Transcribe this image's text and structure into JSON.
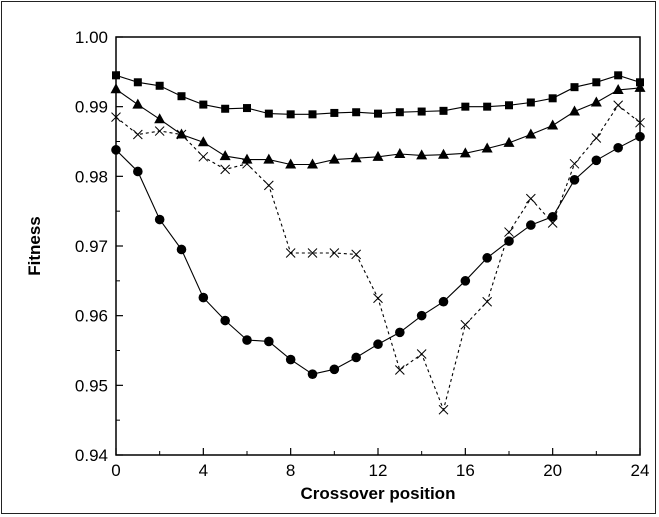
{
  "chart_data": {
    "type": "line",
    "title": "",
    "xlabel": "Crossover position",
    "ylabel": "Fitness",
    "xlim": [
      0,
      24
    ],
    "ylim": [
      0.94,
      1.0
    ],
    "xticks": [
      0,
      4,
      8,
      12,
      16,
      20,
      24
    ],
    "xtick_labels": [
      "0",
      "4",
      "8",
      "12",
      "16",
      "20",
      "24"
    ],
    "yticks": [
      0.94,
      0.95,
      0.96,
      0.97,
      0.98,
      0.99,
      1.0
    ],
    "ytick_labels": [
      "0.94",
      "0.95",
      "0.96",
      "0.97",
      "0.98",
      "0.99",
      "1.00"
    ],
    "grid": false,
    "legend": "none",
    "x": [
      0,
      1,
      2,
      3,
      4,
      5,
      6,
      7,
      8,
      9,
      10,
      11,
      12,
      13,
      14,
      15,
      16,
      17,
      18,
      19,
      20,
      21,
      22,
      23,
      24
    ],
    "series": [
      {
        "marker": "square",
        "line_style": "solid",
        "color": "#000000",
        "values": [
          0.9945,
          0.9935,
          0.993,
          0.9915,
          0.9903,
          0.9897,
          0.9898,
          0.989,
          0.9889,
          0.9889,
          0.9891,
          0.9892,
          0.989,
          0.9892,
          0.9893,
          0.9894,
          0.99,
          0.99,
          0.9902,
          0.9906,
          0.9912,
          0.9928,
          0.9935,
          0.9945,
          0.9935
        ]
      },
      {
        "marker": "triangle",
        "line_style": "solid",
        "color": "#000000",
        "values": [
          0.9925,
          0.9903,
          0.9882,
          0.986,
          0.9849,
          0.9829,
          0.9824,
          0.9824,
          0.9817,
          0.9817,
          0.9824,
          0.9826,
          0.9828,
          0.9832,
          0.983,
          0.9831,
          0.9833,
          0.984,
          0.9848,
          0.986,
          0.9873,
          0.9893,
          0.9906,
          0.9924,
          0.9927
        ]
      },
      {
        "marker": "x",
        "line_style": "dashed",
        "color": "#000000",
        "values": [
          0.9885,
          0.986,
          0.9865,
          0.986,
          0.9828,
          0.981,
          0.9818,
          0.9787,
          0.969,
          0.969,
          0.969,
          0.9688,
          0.9625,
          0.9522,
          0.9545,
          0.9465,
          0.9587,
          0.962,
          0.972,
          0.9768,
          0.9733,
          0.9818,
          0.9855,
          0.9902,
          0.9877
        ]
      },
      {
        "marker": "circle",
        "line_style": "solid",
        "color": "#000000",
        "values": [
          0.9838,
          0.9807,
          0.9738,
          0.9695,
          0.9626,
          0.9593,
          0.9565,
          0.9563,
          0.9537,
          0.9516,
          0.9523,
          0.954,
          0.9559,
          0.9576,
          0.96,
          0.962,
          0.965,
          0.9683,
          0.9707,
          0.973,
          0.9742,
          0.9795,
          0.9823,
          0.9841,
          0.9857
        ]
      }
    ]
  }
}
